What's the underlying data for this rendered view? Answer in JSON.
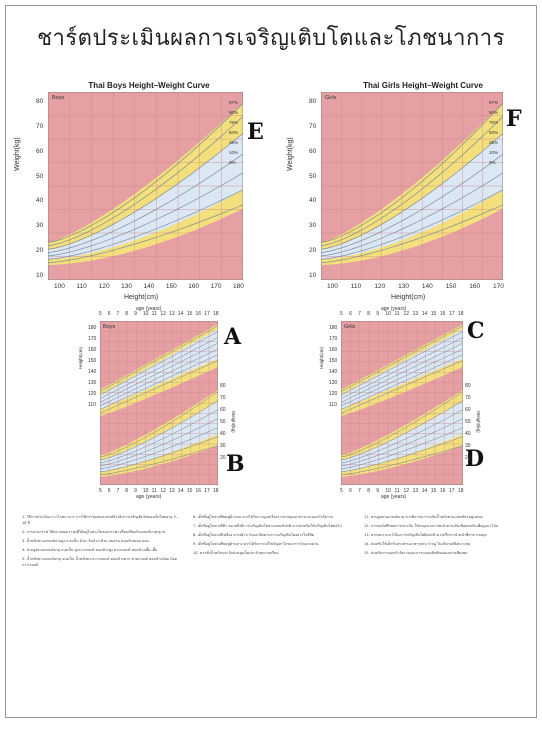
{
  "title": "ชาร์ตประเมินผลการเจริญเติบโตและโภชนาการ",
  "letters": {
    "E": "E",
    "F": "F",
    "A": "A",
    "B": "B",
    "C": "C",
    "D": "D"
  },
  "boys_hw": {
    "title": "Thai Boys Height–Weight Curve",
    "tag": "Boys",
    "ylabel": "Weight(kg)",
    "xlabel": "Height(cm)",
    "yticks": [
      "80",
      "70",
      "60",
      "50",
      "40",
      "30",
      "20",
      "10"
    ],
    "xticks": [
      "100",
      "110",
      "120",
      "130",
      "140",
      "150",
      "160",
      "170",
      "180"
    ],
    "pct": [
      "97%",
      "90%",
      "75%",
      "50%",
      "25%",
      "10%",
      "3%"
    ]
  },
  "girls_hw": {
    "title": "Thai Girls Height–Weight Curve",
    "tag": "Girls",
    "ylabel": "Weight(kg)",
    "xlabel": "Height(cm)",
    "yticks": [
      "80",
      "70",
      "60",
      "50",
      "40",
      "30",
      "20",
      "10"
    ],
    "xticks": [
      "100",
      "110",
      "120",
      "130",
      "140",
      "150",
      "160",
      "170"
    ],
    "pct": [
      "97%",
      "90%",
      "75%",
      "50%",
      "25%",
      "10%",
      "3%"
    ]
  },
  "boys_age": {
    "tag": "Boys",
    "xlabel": "age (years)",
    "ages": [
      "5",
      "6",
      "7",
      "8",
      "9",
      "10",
      "11",
      "12",
      "13",
      "14",
      "15",
      "16",
      "17",
      "18"
    ],
    "left_ticks": [
      "180",
      "170",
      "160",
      "150",
      "140",
      "130",
      "120",
      "110"
    ],
    "right_ticks": [
      "80",
      "70",
      "60",
      "50",
      "40",
      "30",
      "20"
    ],
    "left_label": "Height(cm)",
    "right_label": "Weight(kg)"
  },
  "girls_age": {
    "tag": "Girls",
    "xlabel": "age (years)",
    "ages": [
      "5",
      "6",
      "7",
      "8",
      "9",
      "10",
      "11",
      "12",
      "13",
      "14",
      "15",
      "16",
      "17",
      "18"
    ],
    "left_ticks": [
      "180",
      "170",
      "160",
      "150",
      "140",
      "130",
      "120",
      "110"
    ],
    "right_ticks": [
      "80",
      "70",
      "60",
      "50",
      "40",
      "30",
      "20"
    ],
    "left_label": "Height(cm)",
    "right_label": "Weight(kg)"
  },
  "body_text": {
    "col1": [
      "1. วิธีการประเมินภาวะโภชนาการ การใช้กราฟแสดงเกณฑ์อ้างอิงการเจริญเติบโตของเด็กไทยอายุ 5–18 ปี",
      "2. การอ่านกราฟ ให้ตรวจสอบว่าจุดที่ได้อยู่ในช่วงใดของกราฟ เปรียบเทียบกับเกณฑ์มาตรฐาน",
      "3. น้ำหนักตามเกณฑ์ส่วนสูง แบ่งเป็น อ้วน เริ่มอ้วน ท้วม สมส่วน ค่อนข้างผอม ผอม",
      "4. ส่วนสูงตามเกณฑ์อายุ แบ่งเป็น สูงกว่าเกณฑ์ ค่อนข้างสูง ตามเกณฑ์ ค่อนข้างเตี้ย เตี้ย",
      "5. น้ำหนักตามเกณฑ์อายุ แบ่งเป็น น้ำหนักมากกว่าเกณฑ์ ค่อนข้างมาก ตามเกณฑ์ ค่อนข้างน้อย น้อยกว่าเกณฑ์"
    ],
    "col2": [
      "6. เด็กที่อยู่ในช่วงสีชมพูด้านบน ควรได้รับการดูแลเรื่องการควบคุมอาหารและออกกำลังกาย",
      "7. เด็กที่อยู่ในช่วงสีฟ้า หมายถึงมีการเจริญเติบโตตามเกณฑ์ปกติ ควรส่งเสริมให้เจริญเติบโตต่อไป",
      "8. เด็กที่อยู่ในช่วงสีเหลือง ควรเฝ้าระวังและติดตามการเจริญเติบโตอย่างใกล้ชิด",
      "9. เด็กที่อยู่ในช่วงสีชมพูด้านล่าง ควรได้รับการแก้ไขปัญหาโภชนาการโดยเร่งด่วน",
      "10. ควรชั่งน้ำหนักและวัดส่วนสูงเป็นประจำทุกภาคเรียน"
    ],
    "col3": [
      "11. ส่วนสูงตามเกณฑ์อายุ ควรพิจารณาร่วมกับน้ำหนักตามเกณฑ์ส่วนสูงเสมอ",
      "12. การจดบันทึกผลการประเมิน ให้ลงจุดบนกราฟแล้วลากเส้นเชื่อมต่อกันเพื่อดูแนวโน้ม",
      "13. หากพบว่าแนวโน้มการเจริญเติบโตผิดปกติ ควรปรึกษาเจ้าหน้าที่สาธารณสุข",
      "14. ส่งเสริมให้เด็กรับประทานอาหารครบ 5 หมู่ ในปริมาณที่เหมาะสม",
      "15. ส่งเสริมการออกกำลังกายและการนอนหลับพักผ่อนอย่างเพียงพอ"
    ]
  },
  "colors": {
    "pink": "#e6a0a3",
    "yellow": "#f3e07c",
    "blue": "#dbe7f2",
    "line": "#6f7f98"
  }
}
